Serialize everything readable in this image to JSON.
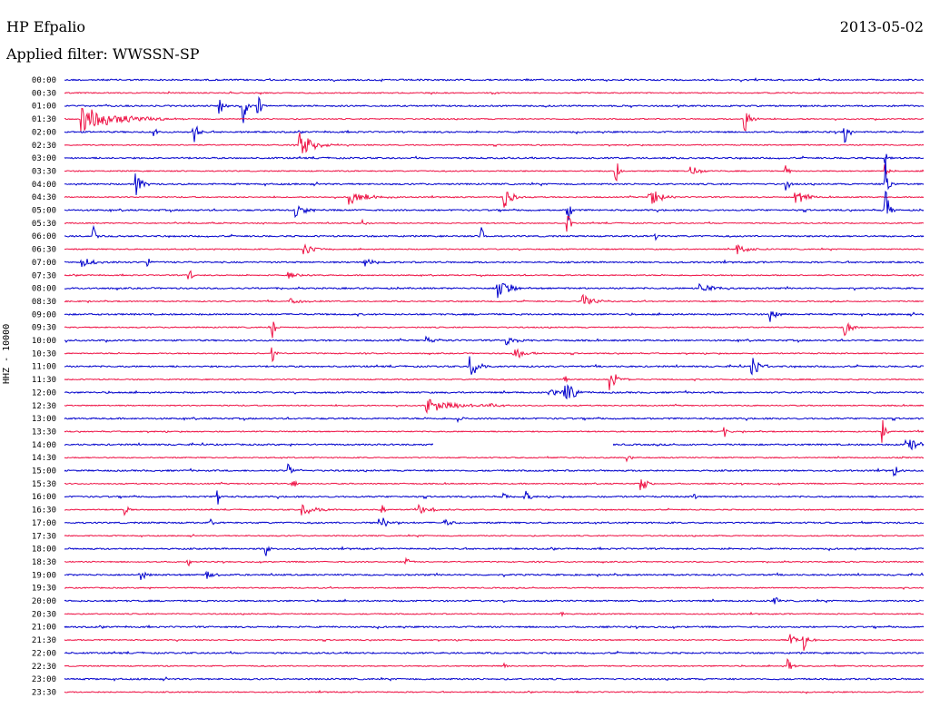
{
  "header": {
    "station": "HP Efpalio",
    "date": "2013-05-02",
    "filter_label": "Applied filter:",
    "filter_value": "WWSSN-SP"
  },
  "channel_label": "HHZ - 10000",
  "colors": {
    "even": "#0000cc",
    "odd": "#ee1144"
  },
  "chart_data": {
    "type": "line",
    "title": "HP Efpalio",
    "ylabel": "HHZ - 10000",
    "row_labels": [
      "00:00",
      "00:30",
      "01:00",
      "01:30",
      "02:00",
      "02:30",
      "03:00",
      "03:30",
      "04:00",
      "04:30",
      "05:00",
      "05:30",
      "06:00",
      "06:30",
      "07:00",
      "07:30",
      "08:00",
      "08:30",
      "09:00",
      "09:30",
      "10:00",
      "10:30",
      "11:00",
      "11:30",
      "12:00",
      "12:30",
      "13:00",
      "13:30",
      "14:00",
      "14:30",
      "15:00",
      "15:30",
      "16:00",
      "16:30",
      "17:00",
      "17:30",
      "18:00",
      "18:30",
      "19:00",
      "19:30",
      "20:00",
      "20:30",
      "21:00",
      "21:30",
      "22:00",
      "22:30",
      "23:00",
      "23:30"
    ],
    "row_minutes": 30,
    "grid": false
  }
}
